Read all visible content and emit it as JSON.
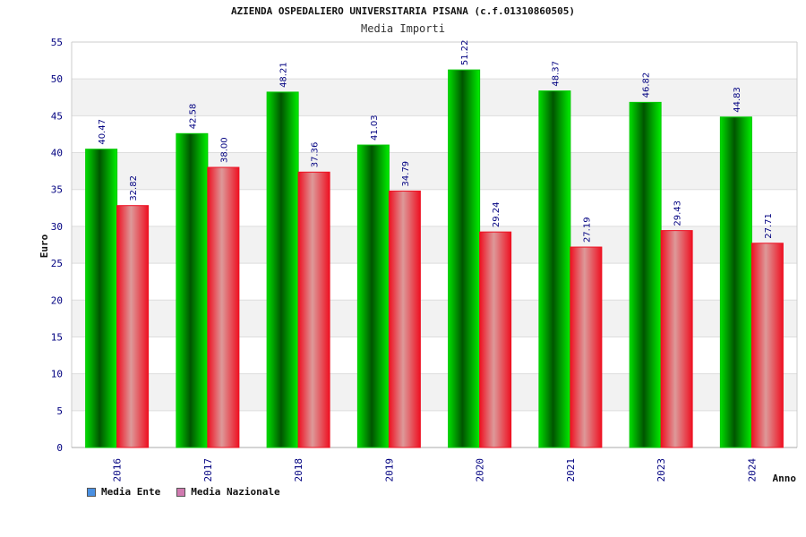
{
  "title": "AZIENDA OSPEDALIERO UNIVERSITARIA PISANA (c.f.01310860505)",
  "subtitle": "Media Importi",
  "legend": [
    {
      "label": "Media Ente",
      "color": "#4a90e2"
    },
    {
      "label": "Media Nazionale",
      "color": "#d07ab0"
    }
  ],
  "colors": {
    "ente": "#00c800",
    "nazionale": "#ee1122",
    "value_label": "#000080",
    "tick_label": "#000080"
  },
  "chart_data": {
    "type": "bar",
    "title": "Media Importi",
    "xlabel": "Anno",
    "ylabel": "Euro",
    "ylim": [
      0,
      55
    ],
    "yticks": [
      0,
      5,
      10,
      15,
      20,
      25,
      30,
      35,
      40,
      45,
      50,
      55
    ],
    "categories": [
      "2016",
      "2017",
      "2018",
      "2019",
      "2020",
      "2021",
      "2023",
      "2024"
    ],
    "series": [
      {
        "name": "Media Ente",
        "values": [
          40.47,
          42.58,
          48.21,
          41.03,
          51.22,
          48.37,
          46.82,
          44.83
        ],
        "labels": [
          "40.47",
          "42.58",
          "48.21",
          "41.03",
          "51.22",
          "48.37",
          "46.82",
          "44.83"
        ]
      },
      {
        "name": "Media Nazionale",
        "values": [
          32.82,
          38.0,
          37.36,
          34.79,
          29.24,
          27.19,
          29.43,
          27.71
        ],
        "labels": [
          "32.82",
          "38.00",
          "37.36",
          "34.79",
          "29.24",
          "27.19",
          "29.43",
          "27.71"
        ]
      }
    ],
    "grid": true,
    "legend_position": "bottom-left"
  }
}
